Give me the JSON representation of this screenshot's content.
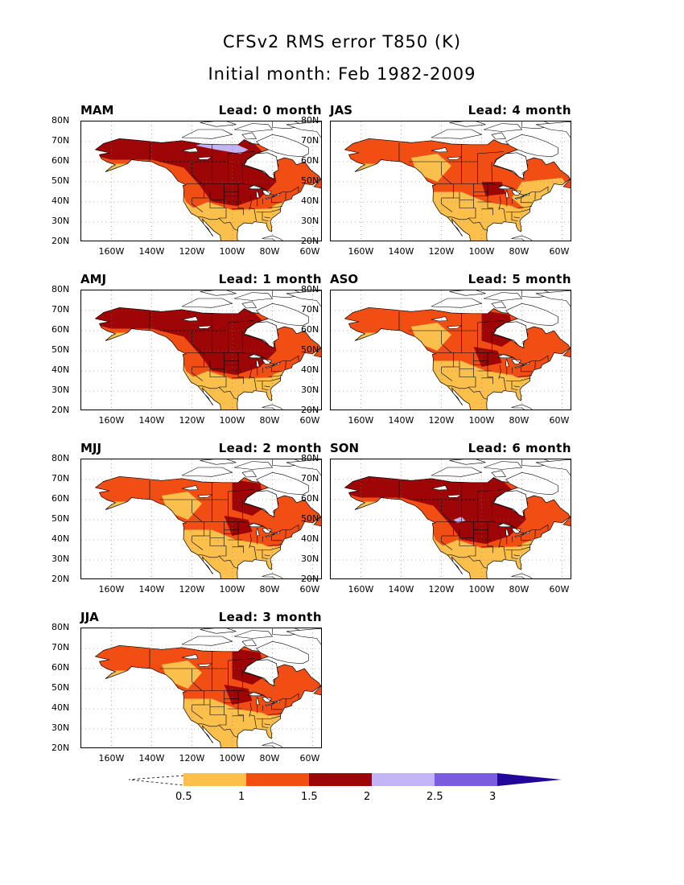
{
  "title_line1": "CFSv2 RMS error T850 (K)",
  "title_line2": "Initial month: Feb 1982-2009",
  "lat_ticks": [
    "80N",
    "70N",
    "60N",
    "50N",
    "40N",
    "30N",
    "20N"
  ],
  "lon_ticks": [
    "160W",
    "140W",
    "120W",
    "100W",
    "80W",
    "60W"
  ],
  "panels": [
    {
      "season": "MAM",
      "lead": "Lead: 0 month",
      "col": 0,
      "row": 0,
      "level": 3
    },
    {
      "season": "AMJ",
      "lead": "Lead: 1 month",
      "col": 0,
      "row": 1,
      "level": 3
    },
    {
      "season": "MJJ",
      "lead": "Lead: 2 month",
      "col": 0,
      "row": 2,
      "level": 2
    },
    {
      "season": "JJA",
      "lead": "Lead: 3 month",
      "col": 0,
      "row": 3,
      "level": 2
    },
    {
      "season": "JAS",
      "lead": "Lead: 4 month",
      "col": 1,
      "row": 0,
      "level": 1
    },
    {
      "season": "ASO",
      "lead": "Lead: 5 month",
      "col": 1,
      "row": 1,
      "level": 2
    },
    {
      "season": "SON",
      "lead": "Lead: 6 month",
      "col": 1,
      "row": 2,
      "level": 3
    }
  ],
  "colorbar": {
    "labels": [
      "0.5",
      "1",
      "1.5",
      "2",
      "2.5",
      "3"
    ],
    "colors": [
      "#fbbf4b",
      "#f24d12",
      "#9d0506",
      "#c3b4f8",
      "#7a5ddc",
      "#23079a"
    ]
  },
  "colors": {
    "light": "#fbbf4b",
    "mid": "#f24d12",
    "dark": "#9d0506",
    "lavender": "#c3b4f8",
    "ocean": "#ffffff"
  }
}
